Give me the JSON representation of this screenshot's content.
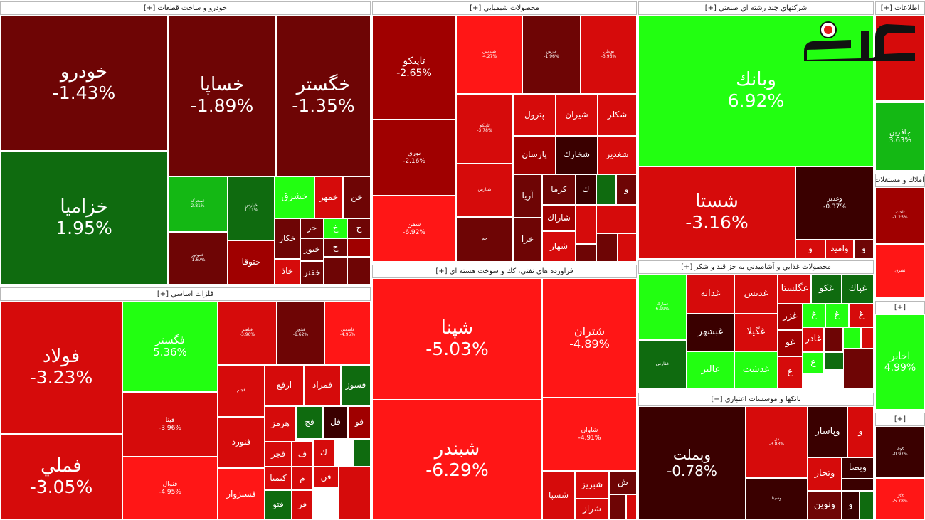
{
  "chart_data": {
    "type": "treemap",
    "title": "",
    "colors": {
      "up_bright": "#22ff11",
      "up_mid": "#14b814",
      "up_dark": "#0f6b0f",
      "down_bright": "#ff1616",
      "down_mid": "#d60b0b",
      "down_dark": "#a00000",
      "down_deep": "#6e0505",
      "down_darkest": "#3a0000",
      "header_bg": "#ffffff"
    },
    "sectors": [
      {
        "name": "خودرو و ساخت قطعات [+]",
        "stocks": [
          {
            "name": "خودرو",
            "change": "-1.43%",
            "color": "down_deep"
          },
          {
            "name": "خساپا",
            "change": "-1.89%",
            "color": "down_deep"
          },
          {
            "name": "خگستر",
            "change": "-1.35%",
            "color": "down_deep"
          },
          {
            "name": "خزامیا",
            "change": "1.95%",
            "color": "up_dark"
          },
          {
            "name": "خمحرکه",
            "change": "2.81%",
            "color": "up_mid"
          },
          {
            "name": "خپارس",
            "change": "1.11%",
            "color": "up_dark"
          },
          {
            "name": "خشرق",
            "change": "",
            "color": "up_bright"
          },
          {
            "name": "خمهر",
            "change": "",
            "color": "down_mid"
          },
          {
            "name": "خن",
            "change": "",
            "color": "down_deep"
          },
          {
            "name": "خموتور",
            "change": "-1.67%",
            "color": "down_deep"
          },
          {
            "name": "ختوقا",
            "change": "",
            "color": "down_dark"
          },
          {
            "name": "خکار",
            "change": "",
            "color": "down_deep"
          },
          {
            "name": "خر",
            "change": "",
            "color": "down_deep"
          },
          {
            "name": "خ",
            "change": "",
            "color": "up_bright"
          },
          {
            "name": "خ",
            "change": "",
            "color": "down_deep"
          },
          {
            "name": "ختور",
            "change": "",
            "color": "down_deep"
          },
          {
            "name": "خ",
            "change": "",
            "color": "down_deep"
          },
          {
            "name": "خاذ",
            "change": "",
            "color": "down_mid"
          },
          {
            "name": "خفنر",
            "change": "",
            "color": "down_deep"
          },
          {
            "name": "",
            "change": "",
            "color": "down_deep"
          },
          {
            "name": "",
            "change": "",
            "color": "down_dark"
          },
          {
            "name": "",
            "change": "",
            "color": "down_deep"
          },
          {
            "name": "",
            "change": "",
            "color": "down_mid"
          }
        ]
      },
      {
        "name": "فلزات اساسي [+]",
        "stocks": [
          {
            "name": "فولاد",
            "change": "-3.23%",
            "color": "down_mid"
          },
          {
            "name": "فملي",
            "change": "-3.05%",
            "color": "down_mid"
          },
          {
            "name": "فگستر",
            "change": "5.36%",
            "color": "up_bright"
          },
          {
            "name": "فباهنر",
            "change": "-3.96%",
            "color": "down_mid"
          },
          {
            "name": "فخوز",
            "change": "-1.62%",
            "color": "down_deep"
          },
          {
            "name": "فاسمين",
            "change": "-4.95%",
            "color": "down_bright"
          },
          {
            "name": "فيتا",
            "change": "-3.96%",
            "color": "down_mid"
          },
          {
            "name": "فجام",
            "change": "",
            "color": "down_mid"
          },
          {
            "name": "فنوال",
            "change": "-4.95%",
            "color": "down_bright"
          },
          {
            "name": "فنورد",
            "change": "",
            "color": "down_mid"
          },
          {
            "name": "ارفع",
            "change": "",
            "color": "down_mid"
          },
          {
            "name": "فمراد",
            "change": "",
            "color": "down_mid"
          },
          {
            "name": "فسوز",
            "change": "",
            "color": "up_dark"
          },
          {
            "name": "هرمز",
            "change": "",
            "color": "down_mid"
          },
          {
            "name": "فج",
            "change": "",
            "color": "up_dark"
          },
          {
            "name": "فل",
            "change": "",
            "color": "down_darkest"
          },
          {
            "name": "فو",
            "change": "",
            "color": "down_dark"
          },
          {
            "name": "فسبزوار",
            "change": "",
            "color": "down_bright"
          },
          {
            "name": "فجر",
            "change": "",
            "color": "down_mid"
          },
          {
            "name": "ف",
            "change": "",
            "color": "down_mid"
          },
          {
            "name": "ك",
            "change": "",
            "color": "down_mid"
          },
          {
            "name": "فباهنر",
            "change": "",
            "color": "down_deep"
          },
          {
            "name": "كيميا",
            "change": "",
            "color": "down_mid"
          },
          {
            "name": "م",
            "change": "",
            "color": "down_mid"
          },
          {
            "name": "فن",
            "change": "",
            "color": "down_mid"
          },
          {
            "name": "فتو",
            "change": "",
            "color": "up_dark"
          },
          {
            "name": "فر",
            "change": "",
            "color": "down_mid"
          },
          {
            "name": "",
            "change": "",
            "color": "up_dark"
          },
          {
            "name": "",
            "change": "",
            "color": "down_mid"
          }
        ]
      },
      {
        "name": "محصولات شيميايي [+]",
        "stocks": [
          {
            "name": "تاپيكو",
            "change": "-2.65%",
            "color": "down_dark"
          },
          {
            "name": "نوري",
            "change": "-2.16%",
            "color": "down_dark"
          },
          {
            "name": "شفن",
            "change": "-6.92%",
            "color": "down_bright"
          },
          {
            "name": "شپديس",
            "change": "-4.27%",
            "color": "down_bright"
          },
          {
            "name": "فارس",
            "change": "-1.96%",
            "color": "down_deep"
          },
          {
            "name": "بوعلي",
            "change": "-3.96%",
            "color": "down_mid"
          },
          {
            "name": "تاپيكو",
            "change": "-3.78%",
            "color": "down_mid"
          },
          {
            "name": "پترول",
            "change": "",
            "color": "down_mid"
          },
          {
            "name": "شيران",
            "change": "",
            "color": "down_mid"
          },
          {
            "name": "شكلر",
            "change": "",
            "color": "down_mid"
          },
          {
            "name": "پارسان",
            "change": "",
            "color": "down_dark"
          },
          {
            "name": "شخارك",
            "change": "",
            "color": "down_darkest"
          },
          {
            "name": "شغدير",
            "change": "",
            "color": "down_mid"
          },
          {
            "name": "آريا",
            "change": "",
            "color": "down_deep"
          },
          {
            "name": "كرما",
            "change": "",
            "color": "down_deep"
          },
          {
            "name": "ك",
            "change": "",
            "color": "down_darkest"
          },
          {
            "name": "و",
            "change": "",
            "color": "down_deep"
          },
          {
            "name": "شاراك",
            "change": "",
            "color": "down_dark"
          },
          {
            "name": "خرا",
            "change": "",
            "color": "down_deep"
          },
          {
            "name": "شهار",
            "change": "",
            "color": "down_mid"
          },
          {
            "name": "شپارس",
            "change": "",
            "color": "down_mid"
          },
          {
            "name": "جم",
            "change": "",
            "color": "down_deep"
          },
          {
            "name": "",
            "change": "",
            "color": "up_dark"
          },
          {
            "name": "",
            "change": "",
            "color": "down_mid"
          },
          {
            "name": "",
            "change": "",
            "color": "down_deep"
          },
          {
            "name": "",
            "change": "",
            "color": "down_mid"
          },
          {
            "name": "",
            "change": "",
            "color": "down_deep"
          },
          {
            "name": "",
            "change": "",
            "color": "down_mid"
          }
        ]
      },
      {
        "name": "فراورده هاي نفتي، كك و سوخت هسته اي [+]",
        "stocks": [
          {
            "name": "شپنا",
            "change": "-5.03%",
            "color": "down_bright"
          },
          {
            "name": "شبندر",
            "change": "-6.29%",
            "color": "down_bright"
          },
          {
            "name": "شتران",
            "change": "-4.89%",
            "color": "down_bright"
          },
          {
            "name": "شاوان",
            "change": "-4.91%",
            "color": "down_bright"
          },
          {
            "name": "شسپا",
            "change": "",
            "color": "down_mid"
          },
          {
            "name": "شبريز",
            "change": "",
            "color": "down_mid"
          },
          {
            "name": "ش",
            "change": "",
            "color": "down_deep"
          },
          {
            "name": "شراز",
            "change": "",
            "color": "down_mid"
          },
          {
            "name": "",
            "change": "",
            "color": "down_deep"
          },
          {
            "name": "",
            "change": "",
            "color": "down_mid"
          }
        ]
      },
      {
        "name": "شركتهاي چند رشته اي صنعتي [+]",
        "stocks": [
          {
            "name": "وبانك",
            "change": "6.92%",
            "color": "up_bright"
          },
          {
            "name": "شستا",
            "change": "-3.16%",
            "color": "down_mid"
          },
          {
            "name": "وغدير",
            "change": "-0.37%",
            "color": "down_darkest"
          },
          {
            "name": "و",
            "change": "",
            "color": "down_mid"
          },
          {
            "name": "واميد",
            "change": "",
            "color": "down_mid"
          },
          {
            "name": "و",
            "change": "",
            "color": "down_deep"
          }
        ]
      },
      {
        "name": "محصولات غذايي و آشاميدني به جز قند و شكر [+]",
        "stocks": [
          {
            "name": "غپاك",
            "change": "",
            "color": "up_dark"
          },
          {
            "name": "غكو",
            "change": "",
            "color": "up_dark"
          },
          {
            "name": "غگلستا",
            "change": "",
            "color": "down_mid"
          },
          {
            "name": "غديس",
            "change": "",
            "color": "down_mid"
          },
          {
            "name": "غدانه",
            "change": "",
            "color": "down_mid"
          },
          {
            "name": "غمارگ",
            "change": "6.99%",
            "color": "up_bright"
          },
          {
            "name": "غبشهر",
            "change": "",
            "color": "down_darkest"
          },
          {
            "name": "غگيلا",
            "change": "",
            "color": "down_mid"
          },
          {
            "name": "غالبر",
            "change": "",
            "color": "up_bright"
          },
          {
            "name": "غدشت",
            "change": "",
            "color": "up_bright"
          },
          {
            "name": "غفارس",
            "change": "",
            "color": "up_dark"
          },
          {
            "name": "غزر",
            "change": "",
            "color": "down_dark"
          },
          {
            "name": "غو",
            "change": "",
            "color": "down_dark"
          },
          {
            "name": "غاذر",
            "change": "",
            "color": "down_mid"
          },
          {
            "name": "غ",
            "change": "",
            "color": "up_bright"
          },
          {
            "name": "غ",
            "change": "",
            "color": "up_bright"
          },
          {
            "name": "غ",
            "change": "",
            "color": "down_mid"
          },
          {
            "name": "غ",
            "change": "",
            "color": "up_bright"
          },
          {
            "name": "غ",
            "change": "",
            "color": "down_mid"
          },
          {
            "name": "",
            "change": "",
            "color": "down_deep"
          },
          {
            "name": "",
            "change": "",
            "color": "up_bright"
          },
          {
            "name": "",
            "change": "",
            "color": "down_mid"
          },
          {
            "name": "",
            "change": "",
            "color": "up_dark"
          },
          {
            "name": "",
            "change": "",
            "color": "down_deep"
          }
        ]
      },
      {
        "name": "بانكها و موسسات اعتباري [+]",
        "stocks": [
          {
            "name": "وبملت",
            "change": "-0.78%",
            "color": "down_darkest"
          },
          {
            "name": "دي",
            "change": "-3.83%",
            "color": "down_mid"
          },
          {
            "name": "وپاسار",
            "change": "",
            "color": "down_darkest"
          },
          {
            "name": "و",
            "change": "",
            "color": "down_mid"
          },
          {
            "name": "وتجار",
            "change": "",
            "color": "down_mid"
          },
          {
            "name": "وبصا",
            "change": "",
            "color": "down_darkest"
          },
          {
            "name": "ونوين",
            "change": "",
            "color": "down_deep"
          },
          {
            "name": "و",
            "change": "",
            "color": "down_darkest"
          },
          {
            "name": "وسينا",
            "change": "",
            "color": "down_darkest"
          },
          {
            "name": "",
            "change": "",
            "color": "up_dark"
          },
          {
            "name": "",
            "change": "",
            "color": "down_darkest"
          }
        ]
      },
      {
        "name": "اطلاعات [+]",
        "stocks": [
          {
            "name": "",
            "change": "",
            "color": "down_mid"
          },
          {
            "name": "",
            "change": "",
            "color": "down_mid"
          }
        ]
      },
      {
        "name": "جافرين",
        "stocks": [
          {
            "name": "جافرين",
            "change": "3.63%",
            "color": "up_mid"
          }
        ]
      },
      {
        "name": "املاك و مستغلات [+]",
        "stocks": [
          {
            "name": "ثاخت",
            "change": "-1.25%",
            "color": "down_dark"
          },
          {
            "name": "ثشرق",
            "change": "",
            "color": "down_bright"
          }
        ]
      },
      {
        "name": "[+]",
        "stocks": [
          {
            "name": "اخابر",
            "change": "4.99%",
            "color": "up_bright"
          }
        ]
      },
      {
        "name": "[+]",
        "stocks": [
          {
            "name": "كچاد",
            "change": "-0.97%",
            "color": "down_darkest"
          },
          {
            "name": "كگل",
            "change": "-5.78%",
            "color": "down_bright"
          }
        ]
      }
    ]
  }
}
